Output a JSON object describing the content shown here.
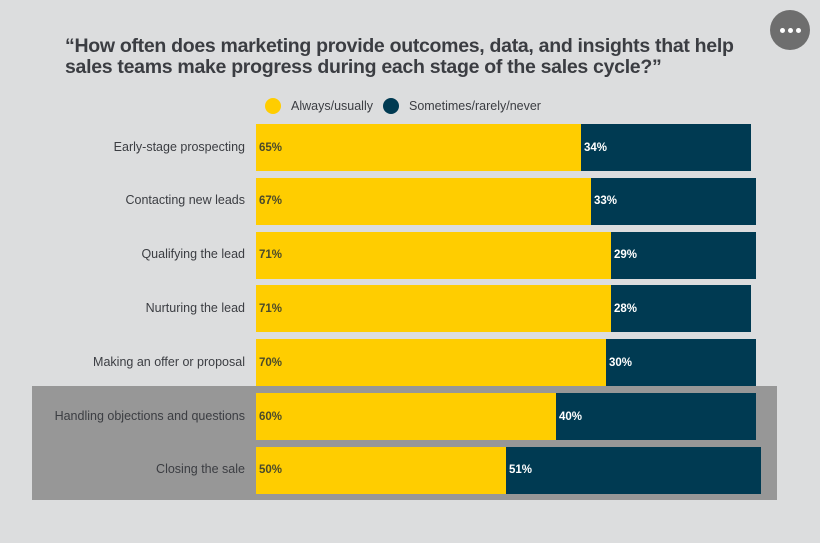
{
  "menu": {
    "icon": "more-horizontal-icon"
  },
  "chart_data": {
    "type": "bar",
    "orientation": "horizontal-stacked",
    "title": "“How often does marketing provide outcomes, data, and insights that help sales teams make progress during each stage of the sales cycle?”",
    "categories": [
      "Early-stage prospecting",
      "Contacting new leads",
      "Qualifying the lead",
      "Nurturing the lead",
      "Making an offer or proposal",
      "Handling objections and questions",
      "Closing the sale"
    ],
    "series": [
      {
        "name": "Always/usually",
        "color": "#ffcd00",
        "values": [
          65,
          67,
          71,
          71,
          70,
          60,
          50
        ]
      },
      {
        "name": "Sometimes/rarely/never",
        "color": "#003a52",
        "values": [
          34,
          33,
          29,
          28,
          30,
          40,
          51
        ]
      }
    ],
    "value_suffix": "%",
    "highlighted_categories": [
      "Handling objections and questions",
      "Closing the sale"
    ],
    "legend_position": "top",
    "grid": false
  }
}
